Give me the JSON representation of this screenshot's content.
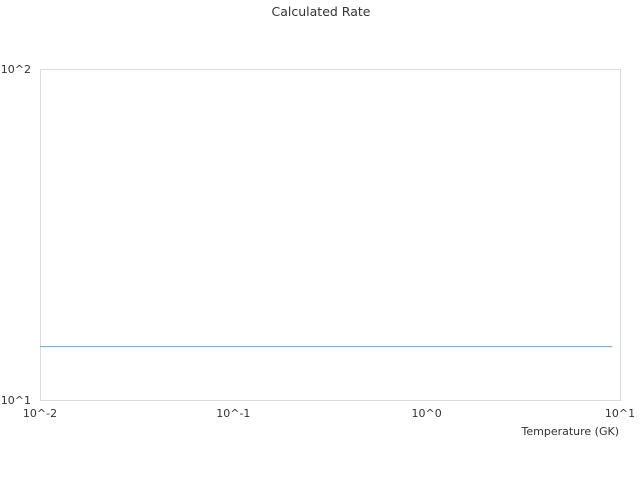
{
  "chart_data": {
    "type": "line",
    "title": "Calculated Rate",
    "xlabel": "Temperature (GK)",
    "ylabel": "",
    "x_scale": "log",
    "y_scale": "log",
    "xlim": [
      0.01,
      10
    ],
    "ylim": [
      10,
      100
    ],
    "x_ticks": [
      0.01,
      0.1,
      1,
      10
    ],
    "x_tick_labels": [
      "10^-2",
      "10^-1",
      "10^0",
      "10^1"
    ],
    "y_ticks": [
      10,
      100
    ],
    "y_tick_labels": [
      "10^1",
      "10^2"
    ],
    "grid": false,
    "series": [
      {
        "x": [
          0.01,
          9.1
        ],
        "y": [
          14.5,
          14.5
        ],
        "color": "#6a9fd8"
      }
    ]
  }
}
